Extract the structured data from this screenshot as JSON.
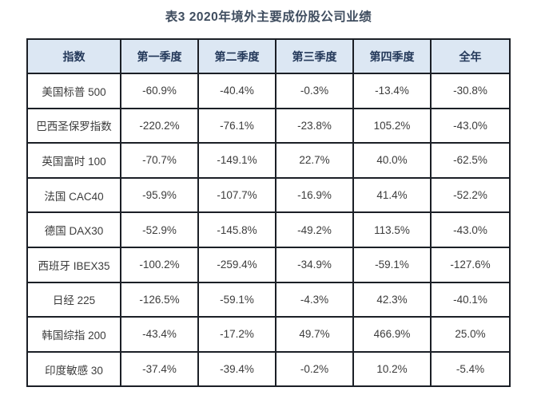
{
  "title": "表3 2020年境外主要成份股公司业绩",
  "colors": {
    "header_bg": "#dce7f3",
    "header_text": "#24395a",
    "body_text": "#3c3c3c",
    "border_color": "#1b1f26",
    "title_text": "#3f4d5f",
    "page_bg": "#ffffff"
  },
  "table": {
    "headers": [
      "指数",
      "第一季度",
      "第二季度",
      "第三季度",
      "第四季度",
      "全年"
    ],
    "rows": [
      [
        "美国标普 500",
        "-60.9%",
        "-40.4%",
        "-0.3%",
        "-13.4%",
        "-30.8%"
      ],
      [
        "巴西圣保罗指数",
        "-220.2%",
        "-76.1%",
        "-23.8%",
        "105.2%",
        "-43.0%"
      ],
      [
        "英国富时 100",
        "-70.7%",
        "-149.1%",
        "22.7%",
        "40.0%",
        "-62.5%"
      ],
      [
        "法国 CAC40",
        "-95.9%",
        "-107.7%",
        "-16.9%",
        "41.4%",
        "-52.2%"
      ],
      [
        "德国 DAX30",
        "-52.9%",
        "-145.8%",
        "-49.2%",
        "113.5%",
        "-43.0%"
      ],
      [
        "西班牙 IBEX35",
        "-100.2%",
        "-259.4%",
        "-34.9%",
        "-59.1%",
        "-127.6%"
      ],
      [
        "日经 225",
        "-126.5%",
        "-59.1%",
        "-4.3%",
        "42.3%",
        "-40.1%"
      ],
      [
        "韩国综指 200",
        "-43.4%",
        "-17.2%",
        "49.7%",
        "466.9%",
        "25.0%"
      ],
      [
        "印度敏感 30",
        "-37.4%",
        "-39.4%",
        "-0.2%",
        "10.2%",
        "-5.4%"
      ]
    ]
  },
  "chart_data": {
    "type": "table",
    "title": "表3 2020年境外主要成份股公司业绩",
    "unit": "%",
    "columns": [
      "指数",
      "第一季度",
      "第二季度",
      "第三季度",
      "第四季度",
      "全年"
    ],
    "rows": [
      {
        "index": "美国标普 500",
        "q1": -60.9,
        "q2": -40.4,
        "q3": -0.3,
        "q4": -13.4,
        "year": -30.8
      },
      {
        "index": "巴西圣保罗指数",
        "q1": -220.2,
        "q2": -76.1,
        "q3": -23.8,
        "q4": 105.2,
        "year": -43.0
      },
      {
        "index": "英国富时 100",
        "q1": -70.7,
        "q2": -149.1,
        "q3": 22.7,
        "q4": 40.0,
        "year": -62.5
      },
      {
        "index": "法国 CAC40",
        "q1": -95.9,
        "q2": -107.7,
        "q3": -16.9,
        "q4": 41.4,
        "year": -52.2
      },
      {
        "index": "德国 DAX30",
        "q1": -52.9,
        "q2": -145.8,
        "q3": -49.2,
        "q4": 113.5,
        "year": -43.0
      },
      {
        "index": "西班牙 IBEX35",
        "q1": -100.2,
        "q2": -259.4,
        "q3": -34.9,
        "q4": -59.1,
        "year": -127.6
      },
      {
        "index": "日经 225",
        "q1": -126.5,
        "q2": -59.1,
        "q3": -4.3,
        "q4": 42.3,
        "year": -40.1
      },
      {
        "index": "韩国综指 200",
        "q1": -43.4,
        "q2": -17.2,
        "q3": 49.7,
        "q4": 466.9,
        "year": 25.0
      },
      {
        "index": "印度敏感 30",
        "q1": -37.4,
        "q2": -39.4,
        "q3": -0.2,
        "q4": 10.2,
        "year": -5.4
      }
    ]
  }
}
